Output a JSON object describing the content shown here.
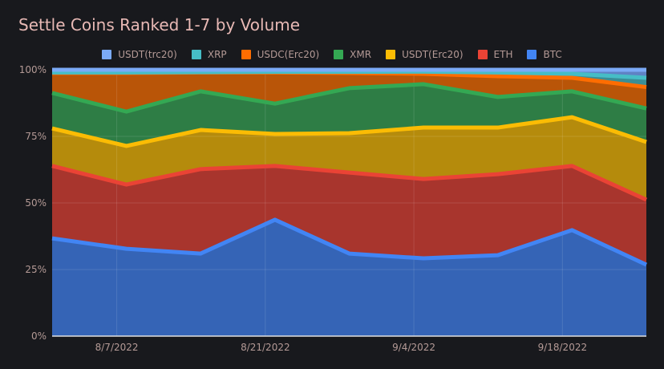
{
  "chart_data": {
    "type": "area",
    "stacked": true,
    "normalized": true,
    "title": "Settle Coins Ranked 1-7 by Volume",
    "xlabel": "",
    "ylabel": "",
    "x": [
      "7/31/2022",
      "8/7/2022",
      "8/14/2022",
      "8/21/2022",
      "8/28/2022",
      "9/4/2022",
      "9/11/2022",
      "9/18/2022",
      "9/25/2022"
    ],
    "x_tick_labels": [
      "8/7/2022",
      "8/21/2022",
      "9/4/2022",
      "9/18/2022"
    ],
    "x_tick_indices": [
      1,
      3,
      5,
      7
    ],
    "y_tick_labels": [
      "0%",
      "25%",
      "50%",
      "75%",
      "100%"
    ],
    "y_ticks": [
      0,
      25,
      50,
      75,
      100
    ],
    "ylim": [
      0,
      100
    ],
    "grid": true,
    "legend_position": "top-center",
    "series": [
      {
        "name": "BTC",
        "line_color": "#4285f4",
        "fill_color": "#3564b6",
        "values": [
          36.7,
          32.8,
          31.0,
          43.7,
          31.0,
          29.2,
          30.4,
          39.8,
          26.8
        ]
      },
      {
        "name": "ETH",
        "line_color": "#ea4335",
        "fill_color": "#a8352d",
        "values": [
          27.2,
          24.1,
          31.7,
          20.2,
          30.4,
          29.8,
          30.4,
          24.1,
          24.4
        ]
      },
      {
        "name": "USDT(Erc20)",
        "line_color": "#fbbc04",
        "fill_color": "#b58b0c",
        "values": [
          14.1,
          14.5,
          14.7,
          12.0,
          14.8,
          19.3,
          17.5,
          18.3,
          21.7
        ]
      },
      {
        "name": "XMR",
        "line_color": "#34a853",
        "fill_color": "#2e7d45",
        "values": [
          13.3,
          12.9,
          14.5,
          11.4,
          16.9,
          16.3,
          11.5,
          9.7,
          12.6
        ]
      },
      {
        "name": "USDC(Erc20)",
        "line_color": "#ff6d01",
        "fill_color": "#b95508",
        "values": [
          7.5,
          14.5,
          7.1,
          11.7,
          5.7,
          3.9,
          7.8,
          5.1,
          8.0
        ]
      },
      {
        "name": "XRP",
        "line_color": "#46bdc6",
        "fill_color": "#3a8e96",
        "values": [
          0.2,
          0.2,
          0.1,
          0.2,
          0.4,
          0.8,
          1.4,
          1.5,
          3.5
        ]
      },
      {
        "name": "USDT(trc20)",
        "line_color": "#7baaf7",
        "fill_color": "#5f82c5",
        "values": [
          1.0,
          1.0,
          0.9,
          0.8,
          0.8,
          0.7,
          1.0,
          1.5,
          3.0
        ]
      }
    ],
    "legend_order": [
      "USDT(trc20)",
      "XRP",
      "USDC(Erc20)",
      "XMR",
      "USDT(Erc20)",
      "ETH",
      "BTC"
    ]
  }
}
